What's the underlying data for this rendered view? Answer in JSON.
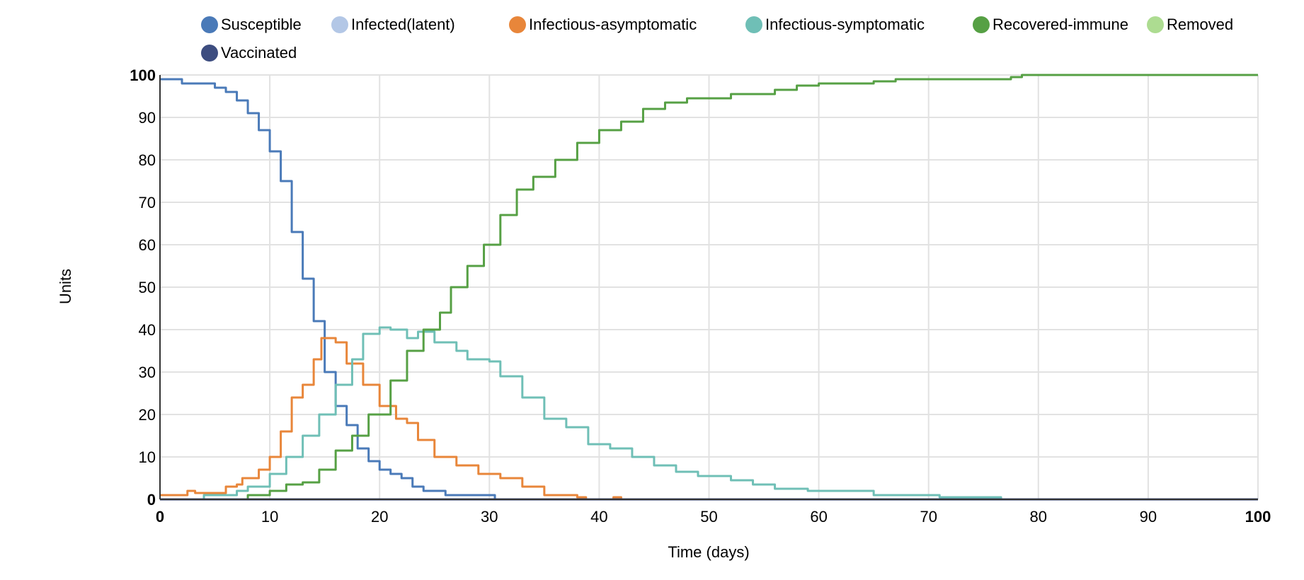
{
  "chart_data": {
    "type": "line",
    "title": "",
    "xlabel": "Time (days)",
    "ylabel": "Units",
    "xlim": [
      0,
      100
    ],
    "ylim": [
      0,
      100
    ],
    "grid": true,
    "legend_position": "top",
    "x_ticks": [
      "0",
      "10",
      "20",
      "30",
      "40",
      "50",
      "60",
      "70",
      "80",
      "90",
      "100"
    ],
    "y_ticks": [
      "0",
      "10",
      "20",
      "30",
      "40",
      "50",
      "60",
      "70",
      "80",
      "90",
      "100"
    ],
    "series": [
      {
        "name": "Susceptible",
        "color": "#4a7ab8",
        "visible": true,
        "x": [
          0,
          1.8,
          2.0,
          4.0,
          5.0,
          6.0,
          7.0,
          8.0,
          9.0,
          10.0,
          11.0,
          12.0,
          13.0,
          14.0,
          15.0,
          16.0,
          17.0,
          18.0,
          19.0,
          20.0,
          21.0,
          22.0,
          23.0,
          24.0,
          25.5,
          26.0,
          29.0,
          30.5,
          31.0,
          100
        ],
        "y": [
          99,
          99,
          98,
          98,
          97,
          96,
          94,
          91,
          87,
          82,
          75,
          63,
          52,
          42,
          30,
          22,
          17.5,
          12,
          9,
          7,
          6,
          5,
          3,
          2,
          2,
          1,
          1,
          0,
          0,
          0
        ]
      },
      {
        "name": "Infected(latent)",
        "color": "#b3c7e6",
        "visible": false,
        "x": [],
        "y": []
      },
      {
        "name": "Infectious-asymptomatic",
        "color": "#e8863a",
        "visible": true,
        "x": [
          0,
          2.0,
          2.5,
          3.2,
          5.2,
          6.0,
          7.0,
          7.5,
          9.0,
          10.0,
          11.0,
          12.0,
          13.0,
          14.0,
          14.7,
          16.0,
          17.0,
          18.5,
          20.0,
          21.5,
          22.5,
          23.5,
          25.0,
          27.0,
          29.0,
          31.0,
          33.0,
          35.0,
          38.0,
          38.8,
          39.0,
          41.0,
          41.3,
          41.8,
          42.0,
          100
        ],
        "y": [
          1,
          1,
          2,
          1.5,
          1.5,
          3,
          3.5,
          5,
          7,
          10,
          16,
          24,
          27,
          33,
          38,
          37,
          32,
          27,
          22,
          19,
          18,
          14,
          10,
          8,
          6,
          5,
          3,
          1,
          0.5,
          0,
          0,
          0,
          0.5,
          0.5,
          0,
          0
        ]
      },
      {
        "name": "Infectious-symptomatic",
        "color": "#6fbfb6",
        "visible": true,
        "x": [
          0,
          3.0,
          4.0,
          6.0,
          7.0,
          8.0,
          10.0,
          11.5,
          13.0,
          14.5,
          16.0,
          17.5,
          18.5,
          20.0,
          21.0,
          22.5,
          23.5,
          25.0,
          27.0,
          28.0,
          30.0,
          31.0,
          33.0,
          35.0,
          37.0,
          39.0,
          41.0,
          43.0,
          45.0,
          47.0,
          49.0,
          51.0,
          52.0,
          54.0,
          56.0,
          59.0,
          65.0,
          71.0,
          76.5,
          76.6,
          100
        ],
        "y": [
          0,
          0,
          1,
          1,
          2,
          3,
          6,
          10,
          15,
          20,
          27,
          33,
          39,
          40.5,
          40,
          38,
          39.5,
          37,
          35,
          33,
          32.5,
          29,
          24,
          19,
          17,
          13,
          12,
          10,
          8,
          6.5,
          5.5,
          5.5,
          4.5,
          3.5,
          2.5,
          2,
          1,
          0.5,
          0.5,
          0,
          0
        ]
      },
      {
        "name": "Recovered-immune",
        "color": "#56a044",
        "visible": true,
        "x": [
          0,
          6.0,
          8.0,
          10.0,
          11.5,
          13.0,
          14.5,
          16.0,
          17.5,
          19.0,
          21.0,
          22.5,
          24.0,
          25.5,
          26.5,
          28.0,
          29.5,
          31.0,
          32.5,
          34.0,
          36.0,
          38.0,
          40.0,
          42.0,
          44.0,
          46.0,
          48.0,
          51.0,
          52.0,
          56.0,
          58.0,
          60.0,
          65.0,
          67.0,
          77.0,
          77.5,
          78.5,
          100
        ],
        "y": [
          0,
          0,
          1,
          2,
          3.5,
          4,
          7,
          11.5,
          15,
          20,
          28,
          35,
          40,
          44,
          50,
          55,
          60,
          67,
          73,
          76,
          80,
          84,
          87,
          89,
          92,
          93.5,
          94.5,
          94.5,
          95.5,
          96.5,
          97.5,
          98,
          98.5,
          99,
          99,
          99.5,
          100,
          100
        ]
      },
      {
        "name": "Removed",
        "color": "#addc91",
        "visible": false,
        "x": [],
        "y": []
      },
      {
        "name": "Vaccinated",
        "color": "#3d4d80",
        "visible": true,
        "x": [
          0,
          100
        ],
        "y": [
          0,
          0
        ]
      }
    ]
  },
  "axis_color": "#333333",
  "grid_color": "#e2e2e2"
}
